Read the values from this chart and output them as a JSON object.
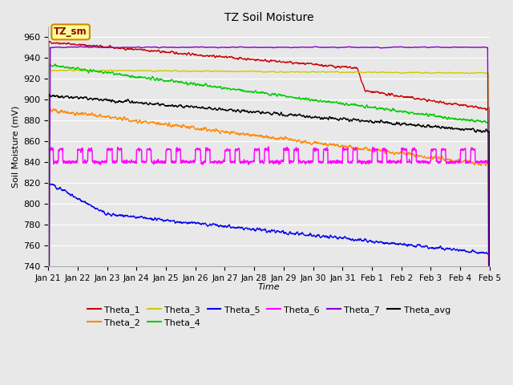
{
  "title": "TZ Soil Moisture",
  "xlabel": "Time",
  "ylabel": "Soil Moisture (mV)",
  "ylim": [
    740,
    970
  ],
  "yticks": [
    740,
    760,
    780,
    800,
    820,
    840,
    860,
    880,
    900,
    920,
    940,
    960
  ],
  "date_labels": [
    "Jan 21",
    "Jan 22",
    "Jan 23",
    "Jan 24",
    "Jan 25",
    "Jan 26",
    "Jan 27",
    "Jan 28",
    "Jan 29",
    "Jan 30",
    "Jan 31",
    "Feb 1",
    "Feb 2",
    "Feb 3",
    "Feb 4",
    "Feb 5"
  ],
  "n_points": 1500,
  "colors": {
    "Theta_1": "#cc0000",
    "Theta_2": "#ff8800",
    "Theta_3": "#cccc00",
    "Theta_4": "#00cc00",
    "Theta_5": "#0000ee",
    "Theta_6": "#ff00ff",
    "Theta_7": "#8800cc",
    "Theta_avg": "#000000"
  },
  "bg_color": "#e8e8e8",
  "label_box_color": "#ffff99",
  "label_box_border": "#cc8800",
  "label_text": "TZ_sm",
  "figsize": [
    6.4,
    4.8
  ],
  "dpi": 100
}
